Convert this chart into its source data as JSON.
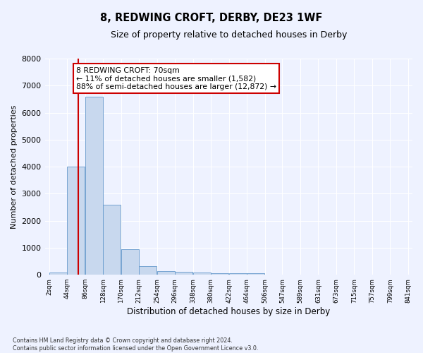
{
  "title": "8, REDWING CROFT, DERBY, DE23 1WF",
  "subtitle": "Size of property relative to detached houses in Derby",
  "xlabel": "Distribution of detached houses by size in Derby",
  "ylabel": "Number of detached properties",
  "bar_color": "#c8d8ee",
  "bar_edgecolor": "#6699cc",
  "vline_color": "#cc0000",
  "vline_x": 70,
  "annotation_line1": "8 REDWING CROFT: 70sqm",
  "annotation_line2": "← 11% of detached houses are smaller (1,582)",
  "annotation_line3": "88% of semi-detached houses are larger (12,872) →",
  "annotation_box_facecolor": "#ffffff",
  "annotation_box_edgecolor": "#cc0000",
  "bin_edges": [
    2,
    44,
    86,
    128,
    170,
    212,
    254,
    296,
    338,
    380,
    422,
    464,
    506,
    547,
    589,
    631,
    673,
    715,
    757,
    799,
    841
  ],
  "bar_heights": [
    80,
    4000,
    6600,
    2600,
    950,
    330,
    140,
    120,
    80,
    70,
    50,
    60,
    5,
    5,
    5,
    5,
    5,
    5,
    5,
    5
  ],
  "ylim": [
    0,
    8000
  ],
  "yticks": [
    0,
    1000,
    2000,
    3000,
    4000,
    5000,
    6000,
    7000,
    8000
  ],
  "background_color": "#eef2ff",
  "grid_color": "#ffffff",
  "footer_line1": "Contains HM Land Registry data © Crown copyright and database right 2024.",
  "footer_line2": "Contains public sector information licensed under the Open Government Licence v3.0."
}
